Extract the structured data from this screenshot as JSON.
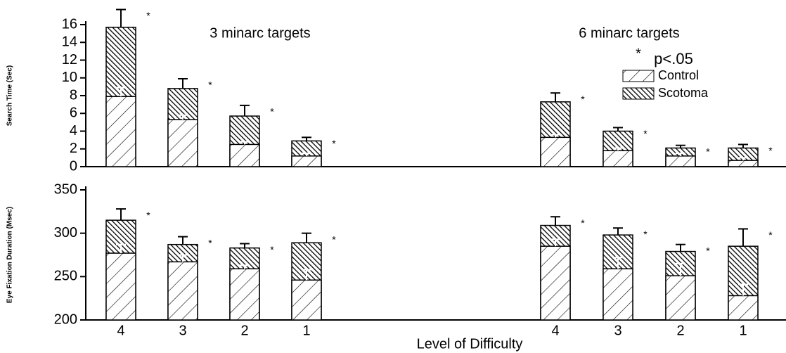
{
  "chart_data": [
    {
      "type": "bar",
      "group_labels": [
        "3 minarc targets",
        "6 minarc targets"
      ],
      "ylabel": "Search Time (Sec)",
      "ylim": [
        0,
        16
      ],
      "yticks": [
        0,
        2,
        4,
        6,
        8,
        10,
        12,
        14,
        16
      ],
      "legend": "upper right",
      "annotations": [
        "*",
        "p<.05"
      ],
      "markers": [
        "*",
        "*",
        "*",
        "*",
        "*",
        "*",
        "*",
        "*"
      ],
      "series": [
        {
          "name": "Scotoma",
          "color": "#000000",
          "values": [
            15.7,
            8.8,
            5.7,
            2.9,
            7.3,
            4.0,
            2.1,
            2.1
          ],
          "errors": [
            2.0,
            1.1,
            1.2,
            0.4,
            1.0,
            0.4,
            0.3,
            0.4
          ]
        },
        {
          "name": "Control",
          "color": "#000000",
          "values": [
            7.9,
            5.3,
            2.5,
            1.2,
            3.3,
            1.8,
            1.2,
            0.7
          ],
          "errors": [
            1.0,
            0.5,
            0.3,
            0.3,
            0.3,
            0.3,
            0.3,
            0.3
          ]
        }
      ]
    },
    {
      "type": "bar",
      "ylabel": "Eye Fixation Duration (Msec)",
      "xlabel": "Level of Difficulty",
      "categories": [
        "4",
        "3",
        "2",
        "1",
        "4",
        "3",
        "2",
        "1"
      ],
      "ylim": [
        200,
        350
      ],
      "yticks": [
        200,
        250,
        300,
        350
      ],
      "markers": [
        "*",
        "*",
        "*",
        "*",
        "*",
        "*",
        "*",
        "*"
      ],
      "series": [
        {
          "name": "Scotoma",
          "color": "#000000",
          "values": [
            315,
            287,
            283,
            289,
            309,
            298,
            279,
            285
          ],
          "errors": [
            13,
            9,
            5,
            11,
            10,
            8,
            8,
            20
          ]
        },
        {
          "name": "Control",
          "color": "#000000",
          "values": [
            277,
            267,
            259,
            246,
            285,
            259,
            251,
            228
          ],
          "errors": [
            10,
            8,
            4,
            12,
            8,
            13,
            14,
            13
          ]
        }
      ]
    }
  ]
}
